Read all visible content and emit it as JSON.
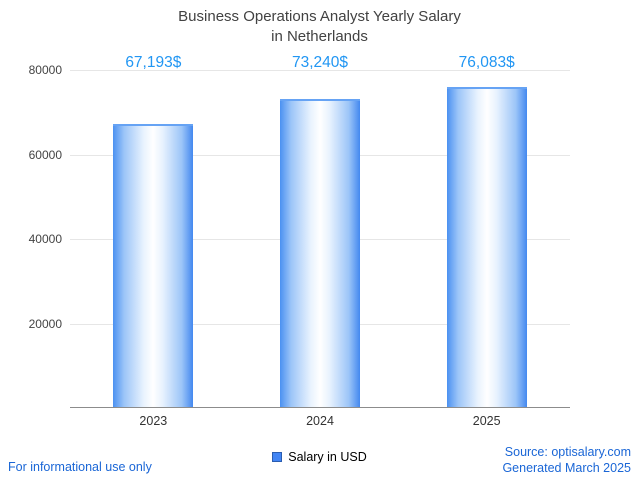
{
  "title": {
    "line1": "Business Operations Analyst Yearly Salary",
    "line2": "in Netherlands"
  },
  "chart_data": {
    "type": "bar",
    "categories": [
      "2023",
      "2024",
      "2025"
    ],
    "values": [
      67193,
      73240,
      76083
    ],
    "value_labels": [
      "67,193$",
      "73,240$",
      "76,083$"
    ],
    "series": [
      {
        "name": "Salary in USD",
        "values": [
          67193,
          73240,
          76083
        ]
      }
    ],
    "title": "Business Operations Analyst Yearly Salary in Netherlands",
    "xlabel": "",
    "ylabel": "",
    "ylim": [
      0,
      80000
    ],
    "yticks": [
      20000,
      40000,
      60000,
      80000
    ],
    "grid": true,
    "legend_position": "bottom"
  },
  "legend": {
    "label": "Salary in USD"
  },
  "footer": {
    "left": "For informational use only",
    "source": "Source: optisalary.com",
    "generated": "Generated March 2025"
  },
  "colors": {
    "accent_value_label": "#2196f3",
    "bar_edge": "#4b91f1",
    "bar_center": "#ffffff",
    "title_text": "#424242",
    "axis_text": "#444444",
    "grid": "#e6e6e6",
    "link": "#1a66d6"
  }
}
